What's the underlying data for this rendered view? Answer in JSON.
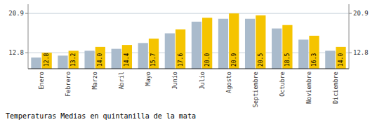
{
  "chart_data": {
    "type": "bar",
    "title": "Temperaturas Medias en quintanilla de la mata",
    "categories": [
      "Enero",
      "Febrero",
      "Marzo",
      "Abril",
      "Mayo",
      "Junio",
      "Julio",
      "Agosto",
      "Septiembre",
      "Octubre",
      "Noviembre",
      "Diciembre"
    ],
    "series": [
      {
        "color": "#AABBCC",
        "values": [
          11.8,
          12.2,
          13.2,
          13.6,
          14.8,
          16.8,
          19.2,
          19.8,
          19.8,
          17.8,
          15.5,
          13.2
        ]
      },
      {
        "color": "#F5C400",
        "values": [
          12.8,
          13.2,
          14.0,
          14.4,
          15.7,
          17.6,
          20.0,
          20.9,
          20.5,
          18.5,
          16.3,
          14.0
        ],
        "data_labels": true,
        "value_labels": [
          "12.8",
          "13.2",
          "14.0",
          "14.4",
          "15.7",
          "17.6",
          "20.0",
          "20.9",
          "20.5",
          "18.5",
          "16.3",
          "14.0"
        ]
      }
    ],
    "ylim": [
      9.5,
      22.8
    ],
    "yticks": [
      12.8,
      20.9
    ],
    "y2lim": [
      9.5,
      22.8
    ],
    "y2ticks": [
      12.8,
      20.9
    ],
    "grid": true
  }
}
